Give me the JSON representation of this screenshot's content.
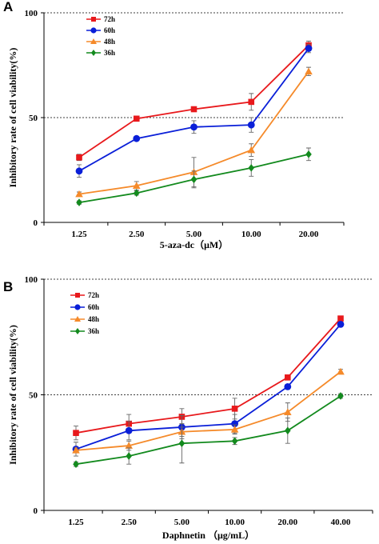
{
  "chart_data": [
    {
      "type": "line",
      "panel_label": "A",
      "categories": [
        "1.25",
        "2.50",
        "5.00",
        "10.00",
        "20.00"
      ],
      "xlabel": "5-aza-dc（μM）",
      "ylabel": "Inhibitory rate of cell viability(%)",
      "ylim": [
        0,
        100
      ],
      "yticks": [
        "0",
        "50",
        "100"
      ],
      "grid": "dashed lines at 50 and 100",
      "legend_position": "top-left",
      "series": [
        {
          "name": "72h",
          "color": "#e8191c",
          "marker": "square",
          "values": [
            31,
            49.5,
            54,
            57.5,
            84.5
          ],
          "errors": [
            1.5,
            1,
            1,
            4,
            2
          ]
        },
        {
          "name": "60h",
          "color": "#0a1fd8",
          "marker": "circle",
          "values": [
            24.5,
            40,
            45.5,
            46.5,
            83
          ],
          "errors": [
            3,
            1,
            3,
            3.5,
            2
          ]
        },
        {
          "name": "48h",
          "color": "#f58a2a",
          "marker": "triangle",
          "values": [
            13.5,
            17.5,
            24,
            34.5,
            72
          ],
          "errors": [
            1,
            2,
            7,
            3,
            2
          ]
        },
        {
          "name": "36h",
          "color": "#138a1e",
          "marker": "diamond",
          "values": [
            9.5,
            14,
            20.5,
            26,
            32.5
          ],
          "errors": [
            0.8,
            1,
            4,
            4,
            3
          ]
        }
      ]
    },
    {
      "type": "line",
      "panel_label": "B",
      "categories": [
        "1.25",
        "2.50",
        "5.00",
        "10.00",
        "20.00",
        "40.00"
      ],
      "xlabel": "Daphnetin （μg/mL）",
      "ylabel": "Inhibitory rate of cell viability(%)",
      "ylim": [
        0,
        100
      ],
      "yticks": [
        "0",
        "50",
        "100"
      ],
      "grid": "dashed lines at 50 and 100",
      "legend_position": "top-left",
      "series": [
        {
          "name": "72h",
          "color": "#e8191c",
          "marker": "square",
          "values": [
            33.5,
            37.5,
            40.5,
            44,
            57.5,
            83
          ],
          "errors": [
            3,
            4,
            3.5,
            4.5,
            1,
            1
          ]
        },
        {
          "name": "60h",
          "color": "#0a1fd8",
          "marker": "circle",
          "values": [
            26.5,
            34.5,
            36,
            37.5,
            53.5,
            80.5
          ],
          "errors": [
            3,
            4,
            5,
            4,
            1,
            1
          ]
        },
        {
          "name": "48h",
          "color": "#f58a2a",
          "marker": "triangle",
          "values": [
            26,
            28,
            34,
            35,
            42.5,
            60
          ],
          "errors": [
            1,
            2,
            2,
            2,
            4,
            1
          ]
        },
        {
          "name": "36h",
          "color": "#138a1e",
          "marker": "diamond",
          "values": [
            20,
            23.5,
            29,
            30,
            34.5,
            49.5
          ],
          "errors": [
            1,
            3.5,
            8.5,
            1.5,
            5.5,
            1
          ]
        }
      ]
    }
  ]
}
